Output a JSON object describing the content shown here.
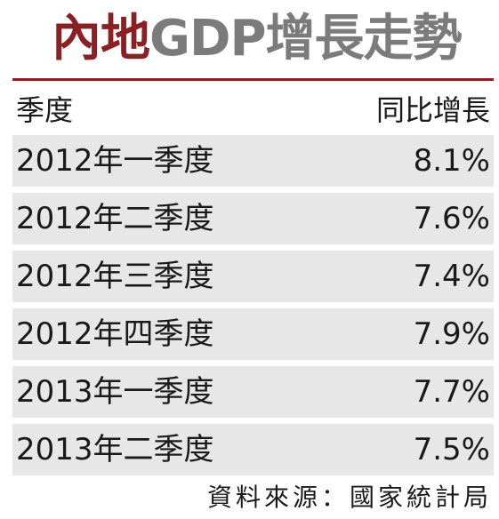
{
  "title": {
    "highlight": "內地",
    "rest": "GDP增長走勢"
  },
  "colors": {
    "accent": "#8a1f24",
    "title_gray": "#7b7b7b",
    "row_bg": "#e7e7e7"
  },
  "chart_data": {
    "type": "table",
    "title": "內地GDP增長走勢",
    "columns": [
      "季度",
      "同比增長"
    ],
    "rows": [
      {
        "quarter": "2012年一季度",
        "growth": "8.1%"
      },
      {
        "quarter": "2012年二季度",
        "growth": "7.6%"
      },
      {
        "quarter": "2012年三季度",
        "growth": "7.4%"
      },
      {
        "quarter": "2012年四季度",
        "growth": "7.9%"
      },
      {
        "quarter": "2013年一季度",
        "growth": "7.7%"
      },
      {
        "quarter": "2013年二季度",
        "growth": "7.5%"
      }
    ],
    "source": "資料來源：國家統計局"
  }
}
